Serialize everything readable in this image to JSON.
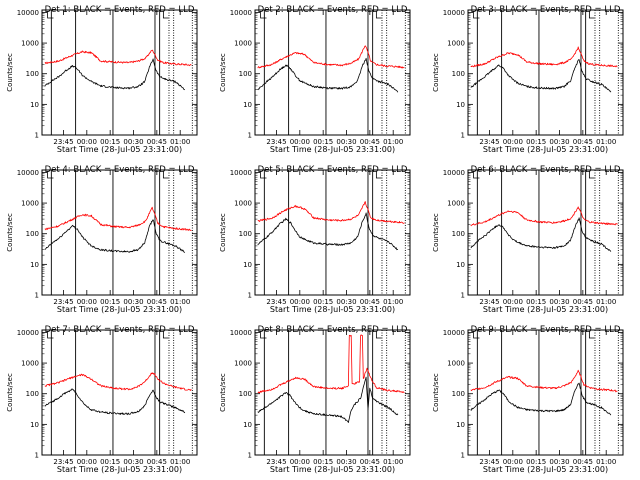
{
  "chart_data": [
    {
      "type": "line",
      "title": "Det 1: BLACK = Events, RED = LLD",
      "xlabel": "Start Time (28-Jul-05 23:31:00)",
      "ylabel": "Counts/sec",
      "x_ticks": [
        "23:45",
        "00:00",
        "00:15",
        "00:30",
        "00:45",
        "01:00"
      ],
      "y_ticks": [
        "1",
        "10",
        "100",
        "1000",
        "10000"
      ],
      "ylim": [
        1,
        12000
      ],
      "yscale": "log",
      "grid": false,
      "series": [
        {
          "color": "#ff0000",
          "x": [
            23.55,
            23.7,
            23.83,
            23.95,
            24.05,
            24.15,
            24.3,
            24.45,
            24.55,
            24.63,
            24.7,
            24.73,
            24.76,
            24.82,
            24.92,
            25.05,
            25.12
          ],
          "y": [
            220,
            260,
            380,
            520,
            480,
            260,
            240,
            230,
            260,
            320,
            600,
            420,
            280,
            230,
            210,
            200,
            190
          ]
        },
        {
          "color": "#000000",
          "x": [
            23.55,
            23.63,
            23.7,
            23.78,
            23.85,
            23.9,
            23.95,
            24.0,
            24.05,
            24.15,
            24.3,
            24.45,
            24.55,
            24.62,
            24.67,
            24.71,
            24.74,
            24.78,
            24.85,
            24.95,
            25.05
          ],
          "y": [
            40,
            60,
            80,
            130,
            180,
            140,
            90,
            70,
            55,
            40,
            35,
            34,
            38,
            55,
            160,
            300,
            130,
            80,
            65,
            55,
            30
          ]
        }
      ]
    },
    {
      "type": "line",
      "title": "Det 2: BLACK = Events, RED = LLD",
      "xlabel": "Start Time (28-Jul-05 23:31:00)",
      "ylabel": "Counts/sec",
      "x_ticks": [
        "23:45",
        "00:00",
        "00:15",
        "00:30",
        "00:45",
        "01:00"
      ],
      "y_ticks": [
        "1",
        "10",
        "100",
        "1000",
        "10000"
      ],
      "ylim": [
        1,
        12000
      ],
      "yscale": "log",
      "grid": false,
      "series": [
        {
          "color": "#ff0000",
          "x": [
            23.55,
            23.7,
            23.83,
            23.95,
            24.05,
            24.15,
            24.3,
            24.45,
            24.55,
            24.63,
            24.7,
            24.73,
            24.76,
            24.82,
            24.92,
            25.05,
            25.12
          ],
          "y": [
            160,
            200,
            330,
            480,
            430,
            230,
            200,
            190,
            220,
            300,
            850,
            500,
            250,
            200,
            180,
            170,
            160
          ]
        },
        {
          "color": "#000000",
          "x": [
            23.55,
            23.63,
            23.7,
            23.78,
            23.85,
            23.9,
            23.95,
            24.0,
            24.05,
            24.15,
            24.3,
            24.45,
            24.55,
            24.62,
            24.67,
            24.71,
            24.74,
            24.78,
            24.85,
            24.95,
            25.05
          ],
          "y": [
            30,
            50,
            75,
            130,
            190,
            150,
            90,
            60,
            50,
            38,
            34,
            33,
            38,
            60,
            180,
            320,
            120,
            70,
            55,
            45,
            25
          ]
        }
      ]
    },
    {
      "type": "line",
      "title": "Det 3: BLACK = Events, RED = LLD",
      "xlabel": "Start Time (28-Jul-05 23:31:00)",
      "ylabel": "Counts/sec",
      "x_ticks": [
        "23:45",
        "00:00",
        "00:15",
        "00:30",
        "00:45",
        "01:00"
      ],
      "y_ticks": [
        "1",
        "10",
        "100",
        "1000",
        "10000"
      ],
      "ylim": [
        1,
        12000
      ],
      "yscale": "log",
      "grid": false,
      "series": [
        {
          "color": "#ff0000",
          "x": [
            23.55,
            23.7,
            23.83,
            23.95,
            24.05,
            24.15,
            24.3,
            24.45,
            24.55,
            24.63,
            24.7,
            24.73,
            24.76,
            24.82,
            24.92,
            25.05,
            25.12
          ],
          "y": [
            170,
            210,
            340,
            470,
            430,
            240,
            210,
            200,
            230,
            300,
            700,
            450,
            260,
            210,
            190,
            180,
            170
          ]
        },
        {
          "color": "#000000",
          "x": [
            23.55,
            23.63,
            23.7,
            23.78,
            23.85,
            23.9,
            23.95,
            24.0,
            24.05,
            24.15,
            24.3,
            24.45,
            24.55,
            24.62,
            24.67,
            24.71,
            24.74,
            24.78,
            24.85,
            24.95,
            25.05
          ],
          "y": [
            35,
            55,
            80,
            130,
            190,
            150,
            90,
            65,
            50,
            38,
            34,
            33,
            38,
            60,
            170,
            300,
            120,
            70,
            55,
            45,
            25
          ]
        }
      ]
    },
    {
      "type": "line",
      "title": "Det 4: BLACK = Events, RED = LLD",
      "xlabel": "Start Time (28-Jul-05 23:31:00)",
      "ylabel": "Counts/sec",
      "x_ticks": [
        "23:45",
        "00:00",
        "00:15",
        "00:30",
        "00:45",
        "01:00"
      ],
      "y_ticks": [
        "1",
        "10",
        "100",
        "1000",
        "10000"
      ],
      "ylim": [
        1,
        12000
      ],
      "yscale": "log",
      "grid": false,
      "series": [
        {
          "color": "#ff0000",
          "x": [
            23.55,
            23.7,
            23.83,
            23.95,
            24.05,
            24.15,
            24.3,
            24.45,
            24.55,
            24.63,
            24.7,
            24.73,
            24.76,
            24.82,
            24.92,
            25.05,
            25.12
          ],
          "y": [
            140,
            180,
            280,
            420,
            380,
            200,
            170,
            160,
            190,
            260,
            700,
            420,
            220,
            170,
            150,
            140,
            130
          ]
        },
        {
          "color": "#000000",
          "x": [
            23.55,
            23.63,
            23.7,
            23.78,
            23.85,
            23.9,
            23.95,
            24.0,
            24.05,
            24.15,
            24.3,
            24.45,
            24.55,
            24.62,
            24.67,
            24.71,
            24.74,
            24.78,
            24.85,
            24.95,
            25.05
          ],
          "y": [
            30,
            50,
            70,
            120,
            180,
            140,
            80,
            55,
            40,
            30,
            27,
            26,
            30,
            50,
            170,
            300,
            110,
            60,
            50,
            40,
            25
          ]
        }
      ]
    },
    {
      "type": "line",
      "title": "Det 5: BLACK = Events, RED = LLD",
      "xlabel": "Start Time (28-Jul-05 23:31:00)",
      "ylabel": "Counts/sec",
      "x_ticks": [
        "23:45",
        "00:00",
        "00:15",
        "00:30",
        "00:45",
        "01:00"
      ],
      "y_ticks": [
        "1",
        "10",
        "100",
        "1000",
        "10000"
      ],
      "ylim": [
        1,
        12000
      ],
      "yscale": "log",
      "grid": false,
      "series": [
        {
          "color": "#ff0000",
          "x": [
            23.55,
            23.7,
            23.83,
            23.95,
            24.05,
            24.15,
            24.3,
            24.45,
            24.55,
            24.63,
            24.7,
            24.73,
            24.76,
            24.82,
            24.92,
            25.05,
            25.12
          ],
          "y": [
            260,
            320,
            560,
            800,
            650,
            330,
            280,
            270,
            300,
            400,
            1100,
            600,
            330,
            280,
            260,
            240,
            230
          ]
        },
        {
          "color": "#000000",
          "x": [
            23.55,
            23.63,
            23.7,
            23.78,
            23.85,
            23.9,
            23.95,
            24.0,
            24.05,
            24.15,
            24.3,
            24.45,
            24.55,
            24.62,
            24.67,
            24.71,
            24.74,
            24.78,
            24.85,
            24.95,
            25.05
          ],
          "y": [
            45,
            70,
            110,
            200,
            300,
            230,
            130,
            80,
            65,
            50,
            45,
            44,
            50,
            80,
            250,
            450,
            160,
            90,
            70,
            55,
            30
          ]
        }
      ]
    },
    {
      "type": "line",
      "title": "Det 6: BLACK = Events, RED = LLD",
      "xlabel": "Start Time (28-Jul-05 23:31:00)",
      "ylabel": "Counts/sec",
      "x_ticks": [
        "23:45",
        "00:00",
        "00:15",
        "00:30",
        "00:45",
        "01:00"
      ],
      "y_ticks": [
        "1",
        "10",
        "100",
        "1000",
        "10000"
      ],
      "ylim": [
        1,
        12000
      ],
      "yscale": "log",
      "grid": false,
      "series": [
        {
          "color": "#ff0000",
          "x": [
            23.55,
            23.7,
            23.83,
            23.95,
            24.05,
            24.15,
            24.3,
            24.45,
            24.55,
            24.63,
            24.7,
            24.73,
            24.76,
            24.82,
            24.92,
            25.05,
            25.12
          ],
          "y": [
            190,
            240,
            380,
            550,
            500,
            280,
            240,
            230,
            260,
            330,
            750,
            480,
            290,
            240,
            220,
            210,
            200
          ]
        },
        {
          "color": "#000000",
          "x": [
            23.55,
            23.63,
            23.7,
            23.78,
            23.85,
            23.9,
            23.95,
            24.0,
            24.05,
            24.15,
            24.3,
            24.45,
            24.55,
            24.62,
            24.67,
            24.71,
            24.74,
            24.78,
            24.85,
            24.95,
            25.05
          ],
          "y": [
            35,
            60,
            85,
            140,
            200,
            160,
            95,
            65,
            52,
            40,
            36,
            35,
            40,
            62,
            180,
            320,
            125,
            75,
            58,
            46,
            26
          ]
        }
      ]
    },
    {
      "type": "line",
      "title": "Det 7: BLACK = Events, RED = LLD",
      "xlabel": "Start Time (28-Jul-05 23:31:00)",
      "ylabel": "Counts/sec",
      "x_ticks": [
        "23:45",
        "00:00",
        "00:15",
        "00:30",
        "00:45",
        "01:00"
      ],
      "y_ticks": [
        "1",
        "10",
        "100",
        "1000",
        "10000"
      ],
      "ylim": [
        1,
        12000
      ],
      "yscale": "log",
      "grid": false,
      "series": [
        {
          "color": "#ff0000",
          "x": [
            23.55,
            23.7,
            23.83,
            23.95,
            24.05,
            24.15,
            24.3,
            24.45,
            24.55,
            24.63,
            24.7,
            24.73,
            24.76,
            24.82,
            24.92,
            25.05,
            25.12
          ],
          "y": [
            180,
            230,
            330,
            420,
            300,
            180,
            150,
            140,
            170,
            260,
            500,
            420,
            300,
            220,
            170,
            140,
            130
          ]
        },
        {
          "color": "#000000",
          "x": [
            23.55,
            23.63,
            23.7,
            23.78,
            23.85,
            23.9,
            23.95,
            24.0,
            24.05,
            24.15,
            24.3,
            24.45,
            24.55,
            24.62,
            24.67,
            24.71,
            24.74,
            24.78,
            24.85,
            24.95,
            25.05
          ],
          "y": [
            40,
            55,
            75,
            110,
            140,
            90,
            55,
            38,
            30,
            25,
            23,
            22,
            26,
            40,
            90,
            130,
            80,
            55,
            45,
            35,
            25
          ]
        }
      ]
    },
    {
      "type": "line",
      "title": "Det 8: BLACK = Events, RED = LLD",
      "xlabel": "Start Time (28-Jul-05 23:31:00)",
      "ylabel": "Counts/sec",
      "x_ticks": [
        "23:45",
        "00:00",
        "00:15",
        "00:30",
        "00:45",
        "01:00"
      ],
      "y_ticks": [
        "1",
        "10",
        "100",
        "1000",
        "10000"
      ],
      "ylim": [
        1,
        12000
      ],
      "yscale": "log",
      "grid": false,
      "series": [
        {
          "color": "#ff0000",
          "x": [
            23.55,
            23.7,
            23.83,
            23.95,
            24.05,
            24.15,
            24.3,
            24.45,
            24.52,
            24.53,
            24.55,
            24.56,
            24.6,
            24.64,
            24.65,
            24.67,
            24.68,
            24.72,
            24.76,
            24.82,
            24.92,
            25.05,
            25.12
          ],
          "y": [
            110,
            140,
            220,
            330,
            300,
            170,
            150,
            150,
            180,
            8000,
            8000,
            200,
            220,
            250,
            8000,
            8000,
            300,
            700,
            320,
            160,
            130,
            120,
            110
          ]
        },
        {
          "color": "#000000",
          "x": [
            23.55,
            23.63,
            23.7,
            23.78,
            23.85,
            23.9,
            23.95,
            24.0,
            24.05,
            24.15,
            24.3,
            24.45,
            24.52,
            24.55,
            24.6,
            24.65,
            24.68,
            24.71,
            24.73,
            24.75,
            24.78,
            24.85,
            24.95,
            25.05
          ],
          "y": [
            25,
            35,
            50,
            75,
            110,
            85,
            50,
            35,
            28,
            22,
            20,
            18,
            12,
            30,
            50,
            70,
            160,
            350,
            30,
            150,
            70,
            50,
            35,
            20
          ]
        }
      ]
    },
    {
      "type": "line",
      "title": "Det 9: BLACK = Events, RED = LLD",
      "xlabel": "Start Time (28-Jul-05 23:31:00)",
      "ylabel": "Counts/sec",
      "x_ticks": [
        "23:45",
        "00:00",
        "00:15",
        "00:30",
        "00:45",
        "01:00"
      ],
      "y_ticks": [
        "1",
        "10",
        "100",
        "1000",
        "10000"
      ],
      "ylim": [
        1,
        12000
      ],
      "yscale": "log",
      "grid": false,
      "series": [
        {
          "color": "#ff0000",
          "x": [
            23.55,
            23.7,
            23.83,
            23.95,
            24.05,
            24.15,
            24.3,
            24.45,
            24.55,
            24.63,
            24.7,
            24.73,
            24.76,
            24.82,
            24.92,
            25.05,
            25.12
          ],
          "y": [
            130,
            160,
            250,
            350,
            320,
            180,
            160,
            150,
            180,
            240,
            550,
            360,
            200,
            160,
            140,
            130,
            120
          ]
        },
        {
          "color": "#000000",
          "x": [
            23.55,
            23.63,
            23.7,
            23.78,
            23.85,
            23.9,
            23.95,
            24.0,
            24.05,
            24.15,
            24.3,
            24.45,
            24.55,
            24.62,
            24.67,
            24.71,
            24.74,
            24.78,
            24.85,
            24.95,
            25.05
          ],
          "y": [
            30,
            45,
            65,
            100,
            130,
            100,
            60,
            45,
            36,
            30,
            28,
            27,
            30,
            45,
            140,
            230,
            90,
            55,
            45,
            35,
            20
          ]
        }
      ]
    }
  ]
}
